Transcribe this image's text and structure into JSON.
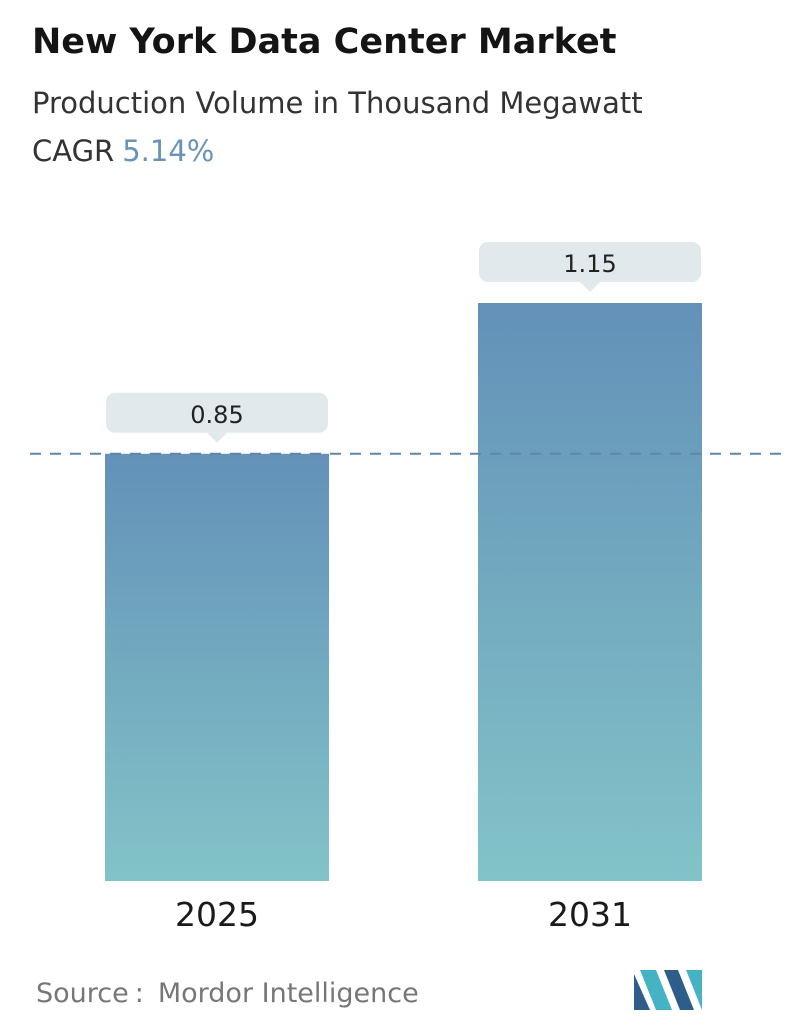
{
  "header": {
    "title": "New York Data Center Market",
    "subtitle": "Production Volume in Thousand Megawatt",
    "cagr_label": "CAGR",
    "cagr_value": "5.14%"
  },
  "chart_data": {
    "type": "bar",
    "categories": [
      "2025",
      "2031"
    ],
    "values": [
      0.85,
      1.15
    ],
    "value_labels": [
      "0.85",
      "1.15"
    ],
    "title": "New York Data Center Market",
    "subtitle": "Production Volume in Thousand Megawatt",
    "xlabel": "",
    "ylabel": "",
    "ylim": [
      0,
      1.15
    ],
    "grid": false,
    "reference_line": 0.85,
    "colors": {
      "bar_top": "#6391b8",
      "bar_bottom": "#82c3c8",
      "label_box": "#e2e9ec",
      "reference_line": "#5c87a8"
    }
  },
  "footer": {
    "source_label": "Source",
    "source_separator": ":",
    "source_name": "Mordor Intelligence",
    "logo_icon": "mordor-intelligence-logo-icon",
    "logo_colors": [
      "#2d5d88",
      "#45b3c4"
    ]
  }
}
